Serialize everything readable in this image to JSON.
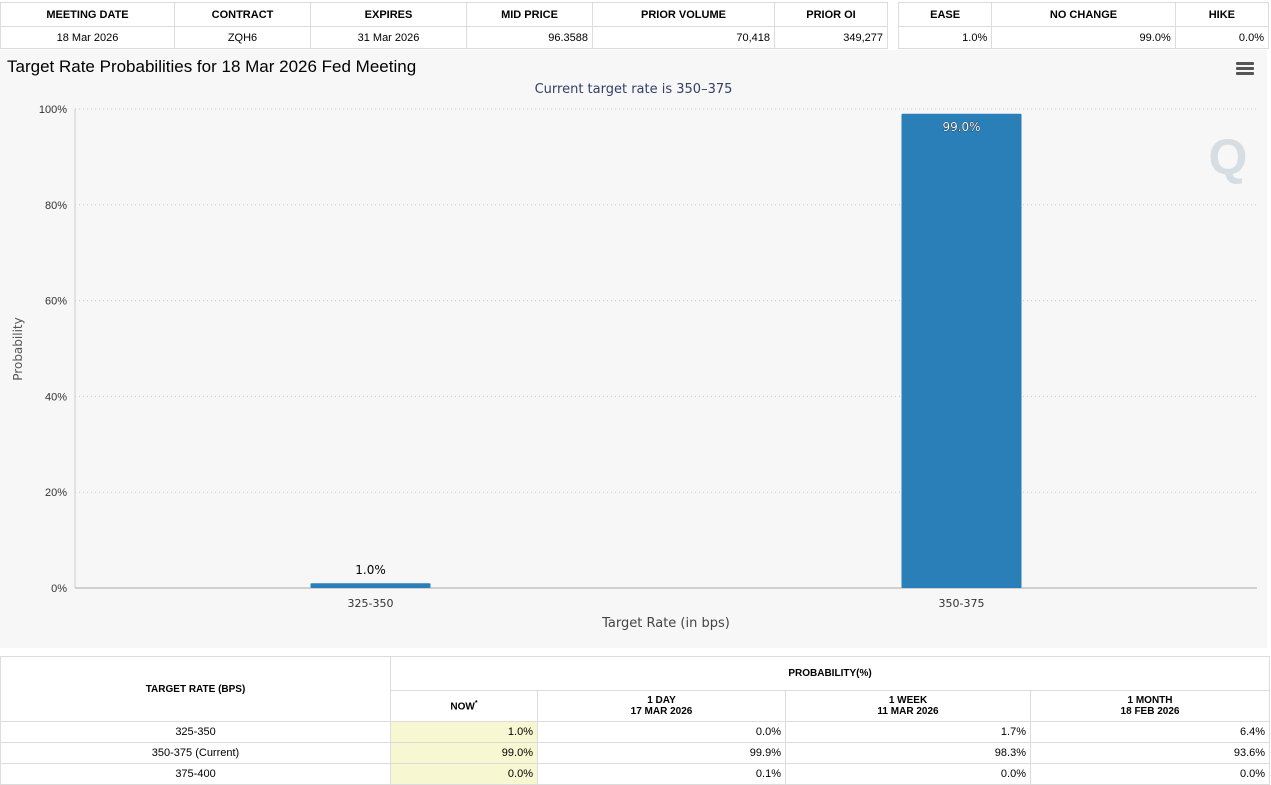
{
  "summary": {
    "headers": [
      "MEETING DATE",
      "CONTRACT",
      "EXPIRES",
      "MID PRICE",
      "PRIOR VOLUME",
      "PRIOR OI"
    ],
    "row": [
      "18 Mar 2026",
      "ZQH6",
      "31 Mar 2026",
      "96.3588",
      "70,418",
      "349,277"
    ]
  },
  "outcome": {
    "headers": [
      "EASE",
      "NO CHANGE",
      "HIKE"
    ],
    "row": [
      "1.0%",
      "99.0%",
      "0.0%"
    ]
  },
  "chart_data": {
    "type": "bar",
    "title": "Target Rate Probabilities for 18 Mar 2026 Fed Meeting",
    "subtitle": "Current target rate is 350–375",
    "xlabel": "Target Rate (in bps)",
    "ylabel": "Probability",
    "categories": [
      "325-350",
      "350-375"
    ],
    "values": [
      1.0,
      99.0
    ],
    "data_labels": [
      "1.0%",
      "99.0%"
    ],
    "ylim": [
      0,
      100
    ],
    "yticks": [
      "0%",
      "20%",
      "40%",
      "60%",
      "80%",
      "100%"
    ],
    "grid": true,
    "bar_color": "#2a7fb8",
    "watermark": "Q"
  },
  "prob_table": {
    "col_target": "TARGET RATE (BPS)",
    "group_header": "PROBABILITY(%)",
    "now_header": "NOW",
    "now_marker": "*",
    "cols": [
      {
        "label": "1 DAY",
        "date": "17 MAR 2026"
      },
      {
        "label": "1 WEEK",
        "date": "11 MAR 2026"
      },
      {
        "label": "1 MONTH",
        "date": "18 FEB 2026"
      }
    ],
    "rows": [
      {
        "rate": "325-350",
        "now": "1.0%",
        "d1": "0.0%",
        "w1": "1.7%",
        "m1": "6.4%"
      },
      {
        "rate": "350-375 (Current)",
        "now": "99.0%",
        "d1": "99.9%",
        "w1": "98.3%",
        "m1": "93.6%"
      },
      {
        "rate": "375-400",
        "now": "0.0%",
        "d1": "0.1%",
        "w1": "0.0%",
        "m1": "0.0%"
      }
    ]
  }
}
